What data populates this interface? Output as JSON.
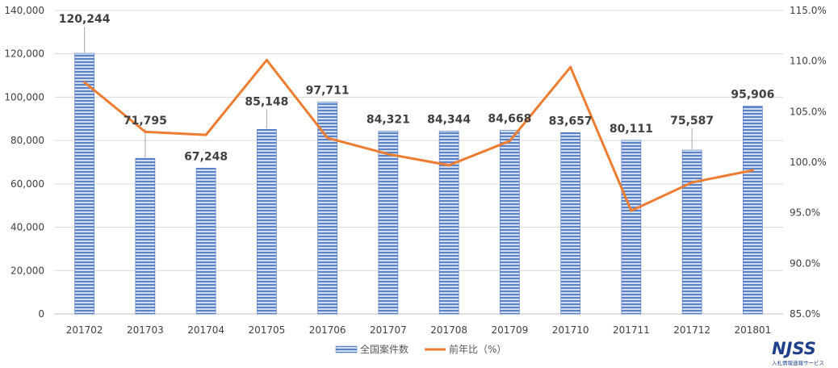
{
  "chart_data": {
    "type": "bar",
    "categories": [
      "201702",
      "201703",
      "201704",
      "201705",
      "201706",
      "201707",
      "201708",
      "201709",
      "201710",
      "201711",
      "201712",
      "201801"
    ],
    "series": [
      {
        "name": "全国案件数",
        "type": "bar",
        "axis": "left",
        "color": "#4472c4",
        "values": [
          120244,
          71795,
          67248,
          85148,
          97711,
          84321,
          84344,
          84668,
          83657,
          80111,
          75587,
          95906
        ],
        "labels": [
          "120,244",
          "71,795",
          "67,248",
          "85,148",
          "97,711",
          "84,321",
          "84,344",
          "84,668",
          "83,657",
          "80,111",
          "75,587",
          "95,906"
        ]
      },
      {
        "name": "前年比（%）",
        "type": "line",
        "axis": "right",
        "color": "#ed7d31",
        "values": [
          107.9,
          103.0,
          102.7,
          110.1,
          102.4,
          100.8,
          99.7,
          102.1,
          109.4,
          95.2,
          98.0,
          99.2
        ]
      }
    ],
    "y_left": {
      "ylim": [
        0,
        140000
      ],
      "ticks": [
        0,
        20000,
        40000,
        60000,
        80000,
        100000,
        120000,
        140000
      ],
      "tick_labels": [
        "0",
        "20,000",
        "40,000",
        "60,000",
        "80,000",
        "100,000",
        "120,000",
        "140,000"
      ]
    },
    "y_right": {
      "ylim": [
        85,
        115
      ],
      "ticks": [
        85,
        90,
        95,
        100,
        105,
        110,
        115
      ],
      "tick_labels": [
        "85.0%",
        "90.0%",
        "95.0%",
        "100.0%",
        "105.0%",
        "110.0%",
        "115.0%"
      ]
    },
    "grid": true,
    "legend_position": "bottom-center"
  },
  "logo": {
    "text": "NJSS",
    "subtext": "入札情報速報サービス"
  }
}
